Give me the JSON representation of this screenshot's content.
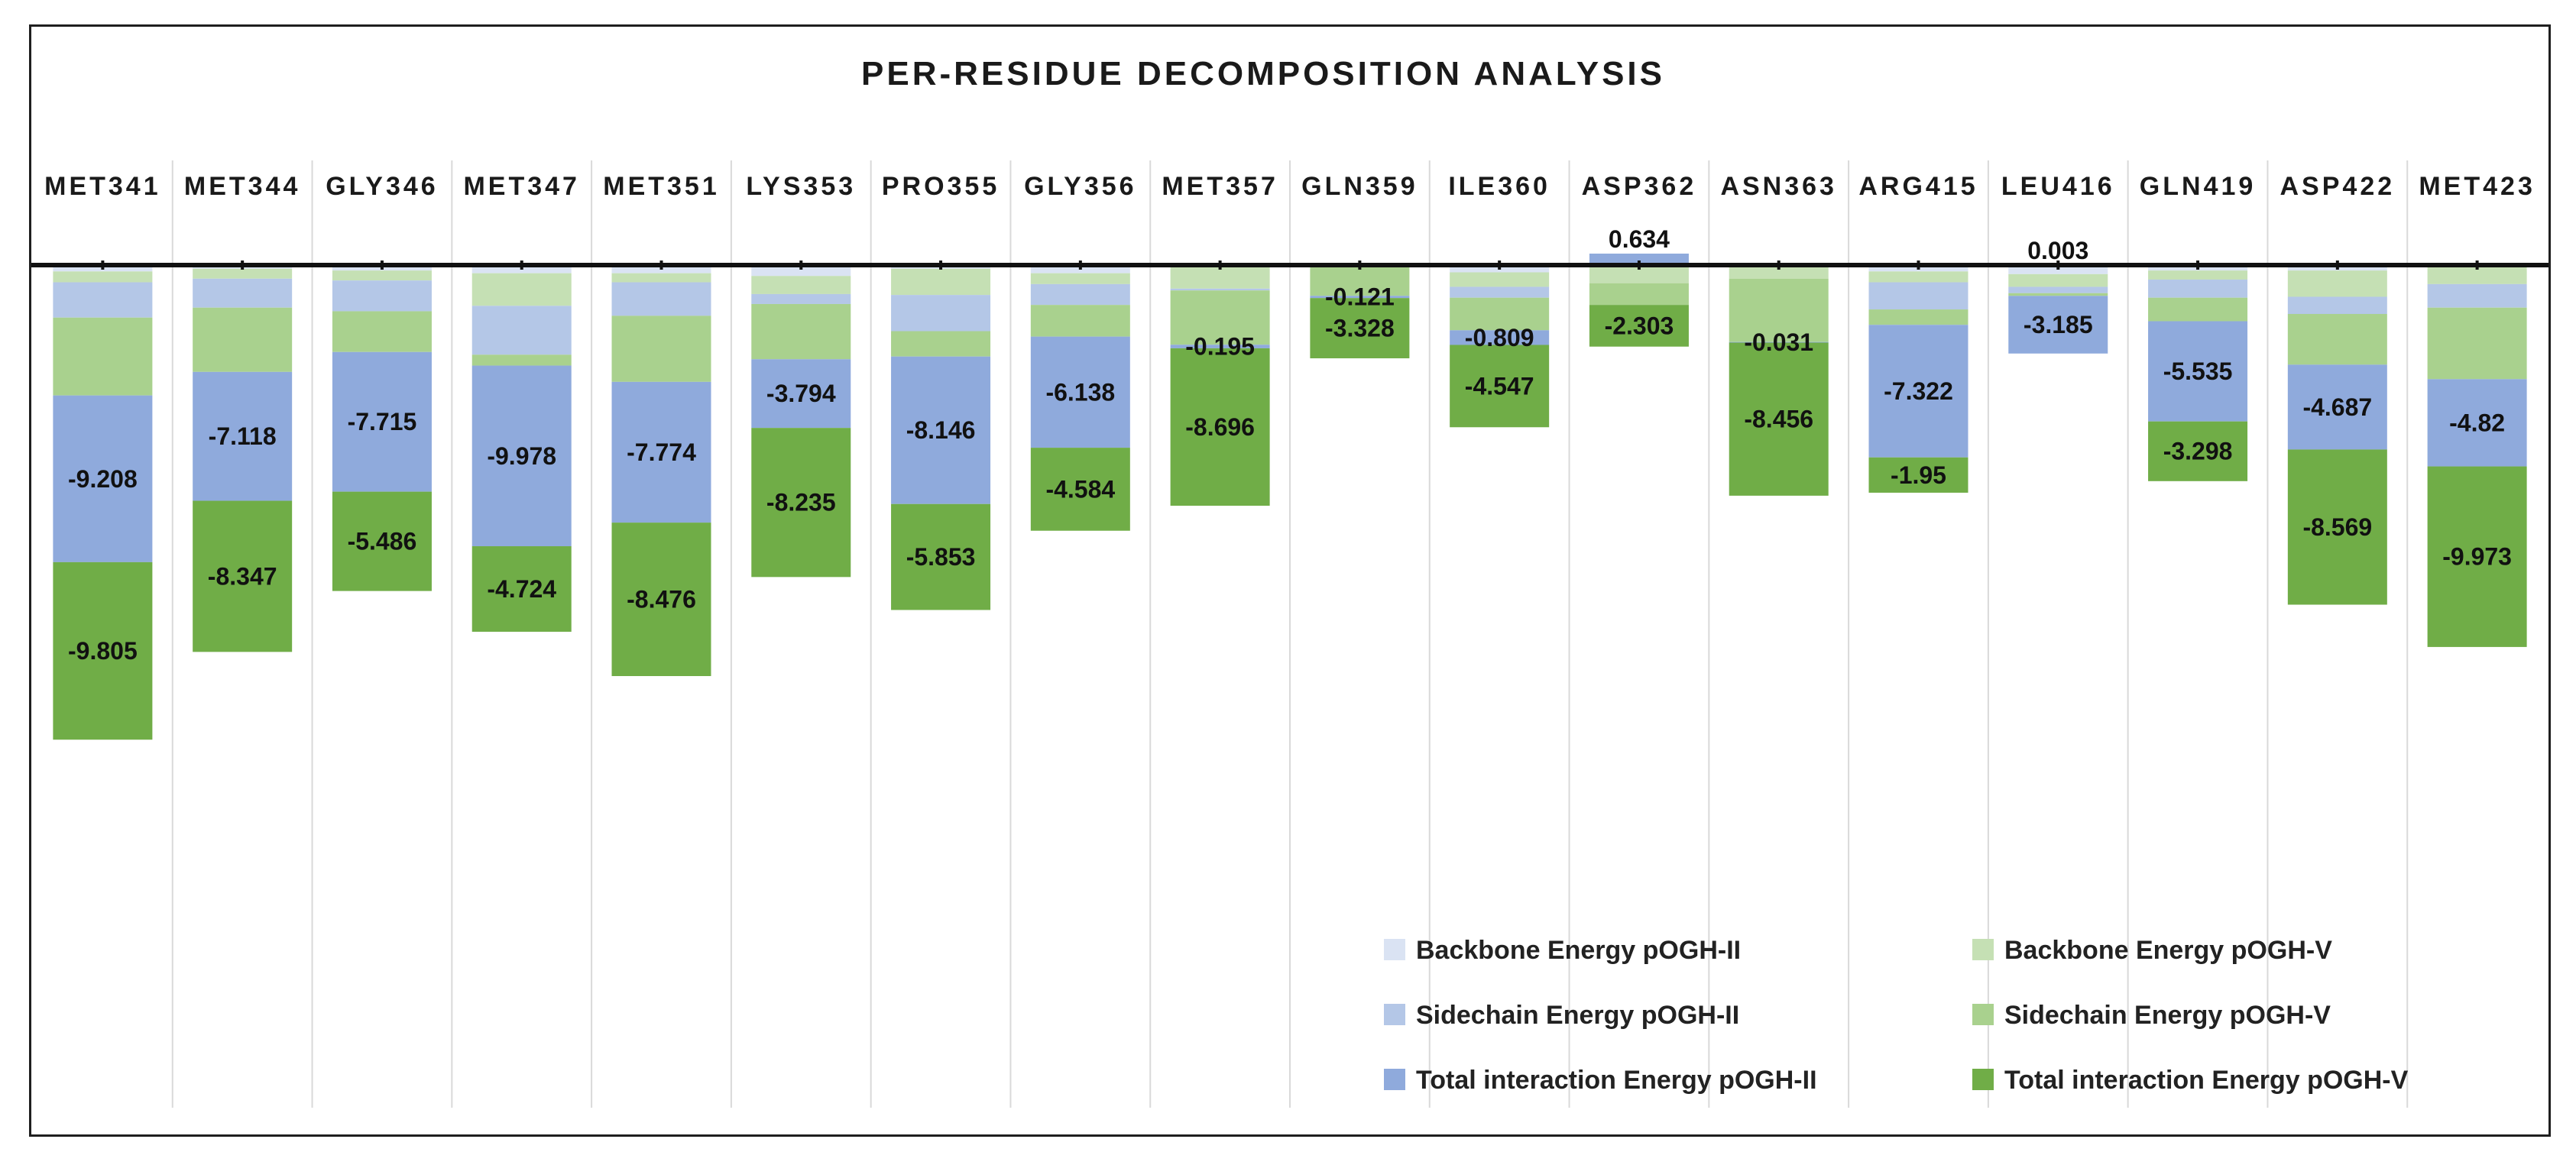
{
  "chart_data": {
    "type": "bar",
    "stacking": "overlapping-from-zero (two stacks per residue)",
    "title": "PER-RESIDUE DECOMPOSITION ANALYSIS",
    "xlabel": "",
    "ylabel": "",
    "ylim": [
      -10.0,
      0.7
    ],
    "grid": false,
    "legend_position": "bottom-right",
    "categories": [
      "MET341",
      "MET344",
      "GLY346",
      "MET347",
      "MET351",
      "LYS353",
      "PRO355",
      "GLY356",
      "MET357",
      "GLN359",
      "ILE360",
      "ASP362",
      "ASN363",
      "ARG415",
      "LEU416",
      "GLN419",
      "ASP422",
      "MET423"
    ],
    "series": [
      {
        "name": "Backbone Energy pOGH-II",
        "color": "#dae3f3",
        "group": "pOGH-II",
        "values": [
          -0.35,
          -0.2,
          -0.3,
          -0.45,
          -0.45,
          -0.6,
          -0.2,
          -0.45,
          0,
          0,
          -0.4,
          0,
          0,
          -0.35,
          -0.5,
          -0.3,
          -0.3,
          0
        ]
      },
      {
        "name": "Sidechain Energy pOGH-II",
        "color": "#b4c7e7",
        "group": "pOGH-II",
        "values": [
          -1.95,
          -1.6,
          -1.7,
          -2.7,
          -1.85,
          -0.55,
          -2.0,
          -1.15,
          -0.1,
          0,
          -0.6,
          0,
          0,
          -1.5,
          -0.35,
          -1.0,
          -0.95,
          -1.3
        ]
      },
      {
        "name": "Total interaction Energy pOGH-II",
        "color": "#8faadc",
        "group": "pOGH-II",
        "values": [
          -9.208,
          -7.118,
          -7.715,
          -9.978,
          -7.774,
          -3.794,
          -8.146,
          -6.138,
          -0.195,
          -0.121,
          -0.809,
          0.634,
          -0.031,
          -7.322,
          -3.185,
          -5.535,
          -4.687,
          -4.82
        ]
      },
      {
        "name": "Backbone Energy pOGH-V",
        "color": "#c5e0b4",
        "group": "pOGH-V",
        "values": [
          -0.6,
          -0.55,
          -0.55,
          -1.8,
          -0.5,
          -1.0,
          -1.45,
          -0.6,
          -1.3,
          0,
          -0.8,
          -1.0,
          -0.75,
          -0.6,
          -0.7,
          -0.5,
          -1.45,
          -1.05
        ]
      },
      {
        "name": "Sidechain Energy pOGH-V",
        "color": "#a9d18e",
        "group": "pOGH-V",
        "values": [
          -4.3,
          -3.55,
          -2.25,
          -0.6,
          -3.65,
          -3.05,
          -1.4,
          -1.75,
          -3.0,
          -1.7,
          -1.8,
          -1.2,
          -3.5,
          -0.85,
          -0.15,
          -1.3,
          -2.8,
          -3.95
        ]
      },
      {
        "name": "Total interaction Energy pOGH-V",
        "color": "#70ad47",
        "group": "pOGH-V",
        "values": [
          -9.805,
          -8.347,
          -5.486,
          -4.724,
          -8.476,
          -8.235,
          -5.853,
          -4.584,
          -8.696,
          -3.328,
          -4.547,
          -2.303,
          -8.456,
          -1.95,
          0.003,
          -3.298,
          -8.569,
          -9.973
        ]
      }
    ],
    "data_labels": [
      [
        "-9.208",
        "-9.805"
      ],
      [
        "-7.118",
        "-8.347"
      ],
      [
        "-7.715",
        "-5.486"
      ],
      [
        "-9.978",
        "-4.724"
      ],
      [
        "-7.774",
        "-8.476"
      ],
      [
        "-3.794",
        "-8.235"
      ],
      [
        "-8.146",
        "-5.853"
      ],
      [
        "-6.138",
        "-4.584"
      ],
      [
        "-0.195",
        "-8.696"
      ],
      [
        "-0.121",
        "-3.328"
      ],
      [
        "-0.809",
        "-4.547"
      ],
      [
        "0.634",
        "-2.303"
      ],
      [
        "-0.031",
        "-8.456"
      ],
      [
        "-7.322",
        "-1.95"
      ],
      [
        "-3.185",
        "0.003"
      ],
      [
        "-5.535",
        "-3.298"
      ],
      [
        "-4.687",
        "-8.569"
      ],
      [
        "-4.82",
        "-9.973"
      ]
    ]
  }
}
